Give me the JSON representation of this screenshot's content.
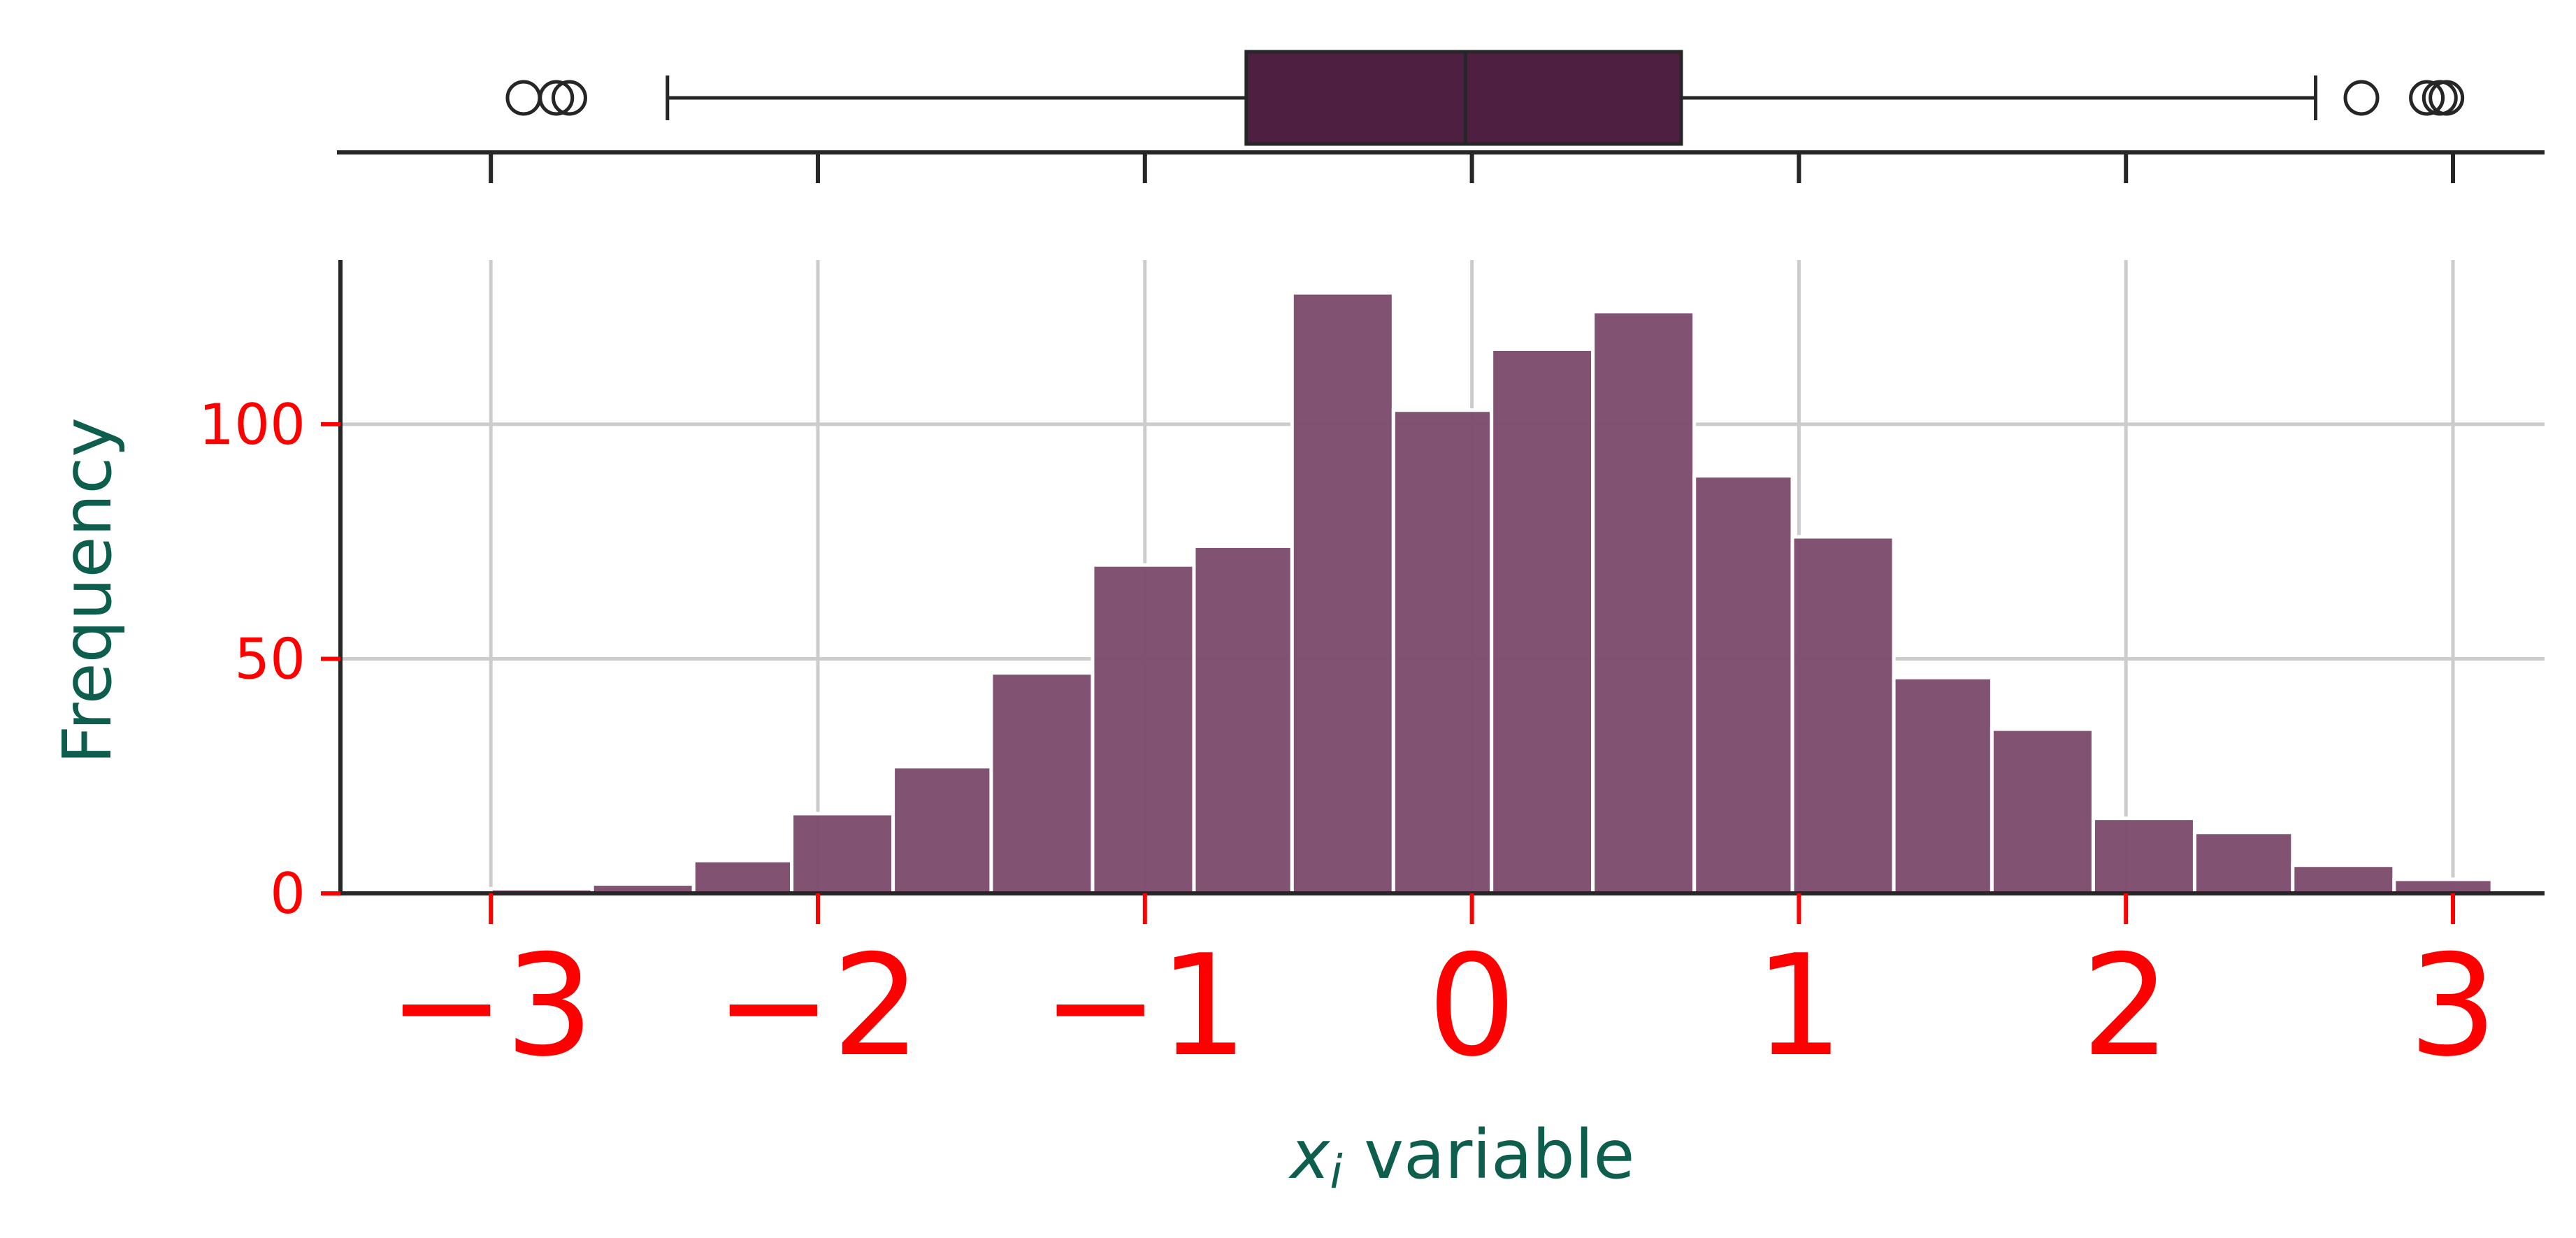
{
  "chart_data": [
    {
      "type": "box",
      "orientation": "horizontal",
      "median": -0.02,
      "q1": -0.69,
      "q3": 0.64,
      "whisker_low": -2.46,
      "whisker_high": 2.58,
      "outliers": [
        -2.9,
        -2.8,
        -2.76,
        2.72,
        2.92,
        2.96,
        2.98
      ],
      "xlim": [
        -3.46,
        3.28
      ],
      "x_ticks": [
        -3,
        -2,
        -1,
        0,
        1,
        2,
        3
      ],
      "tick_labels_shown": false,
      "fill_color": "#4f1f42"
    },
    {
      "type": "bar",
      "subtype": "histogram",
      "bins": [
        {
          "left": -3.0,
          "right": -2.69,
          "count": 1
        },
        {
          "left": -2.69,
          "right": -2.38,
          "count": 2
        },
        {
          "left": -2.38,
          "right": -2.08,
          "count": 7
        },
        {
          "left": -2.08,
          "right": -1.77,
          "count": 17
        },
        {
          "left": -1.77,
          "right": -1.47,
          "count": 27
        },
        {
          "left": -1.47,
          "right": -1.16,
          "count": 47
        },
        {
          "left": -1.16,
          "right": -0.85,
          "count": 70
        },
        {
          "left": -0.85,
          "right": -0.55,
          "count": 74
        },
        {
          "left": -0.55,
          "right": -0.24,
          "count": 128
        },
        {
          "left": -0.24,
          "right": 0.06,
          "count": 103
        },
        {
          "left": 0.06,
          "right": 0.37,
          "count": 116
        },
        {
          "left": 0.37,
          "right": 0.68,
          "count": 124
        },
        {
          "left": 0.68,
          "right": 0.98,
          "count": 89
        },
        {
          "left": 0.98,
          "right": 1.29,
          "count": 76
        },
        {
          "left": 1.29,
          "right": 1.59,
          "count": 46
        },
        {
          "left": 1.59,
          "right": 1.9,
          "count": 35
        },
        {
          "left": 1.9,
          "right": 2.21,
          "count": 16
        },
        {
          "left": 2.21,
          "right": 2.51,
          "count": 13
        },
        {
          "left": 2.51,
          "right": 2.82,
          "count": 6
        },
        {
          "left": 2.82,
          "right": 3.12,
          "count": 3
        }
      ],
      "xlabel": "variable",
      "xlabel_math": "x",
      "xlabel_subscript": "i",
      "ylabel": "Frequency",
      "xlim": [
        -3.46,
        3.28
      ],
      "ylim": [
        0,
        135
      ],
      "x_ticks": [
        -3,
        -2,
        -1,
        0,
        1,
        2,
        3
      ],
      "x_tick_labels": [
        "−3",
        "−2",
        "−1",
        "0",
        "1",
        "2",
        "3"
      ],
      "y_ticks": [
        0,
        50,
        100
      ],
      "y_tick_labels": [
        "0",
        "50",
        "100"
      ],
      "grid": true,
      "bar_color": "#7e4f6f",
      "tick_label_color": "#ff0000",
      "axis_label_color": "#0e5e4e"
    }
  ]
}
